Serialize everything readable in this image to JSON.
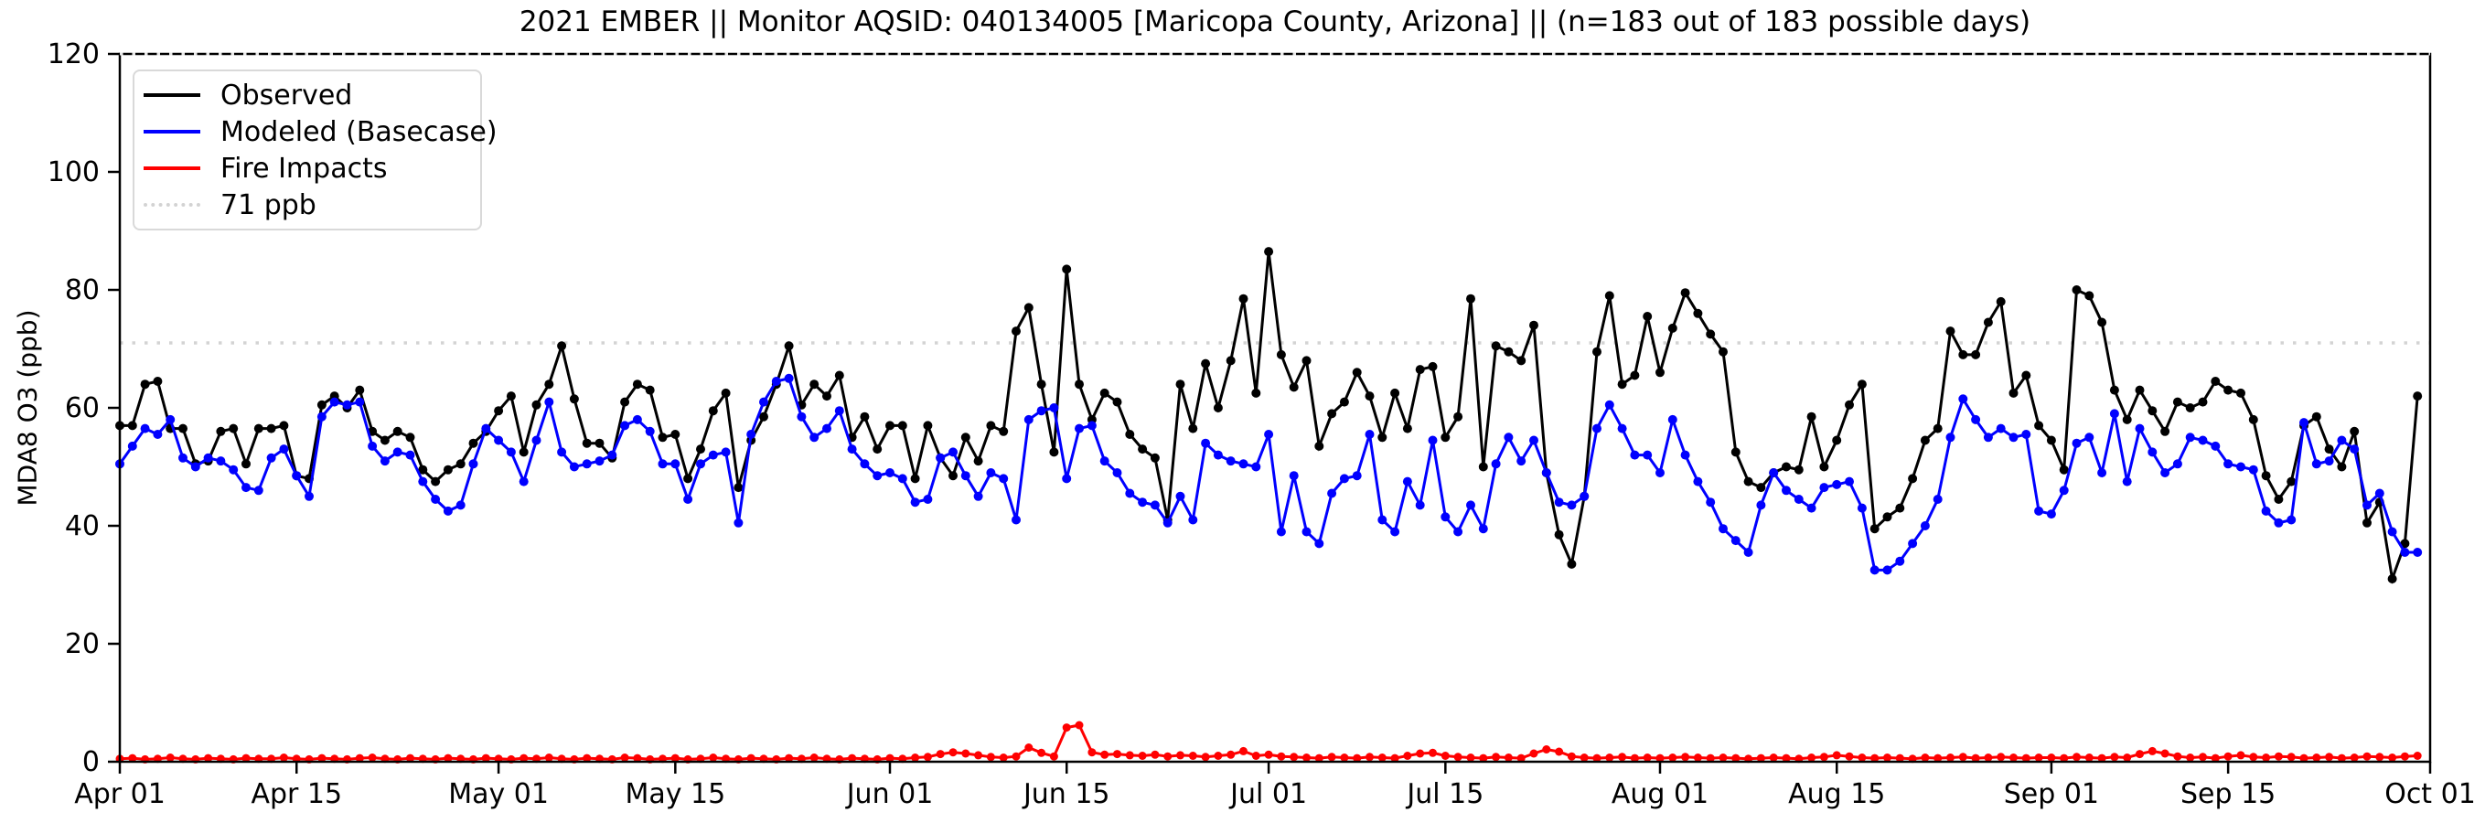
{
  "chart_data": {
    "type": "line",
    "title": "2021 EMBER || Monitor AQSID: 040134005 [Maricopa County, Arizona] || (n=183 out of 183 possible days)",
    "xlabel": "",
    "ylabel": "MDA8 O3 (ppb)",
    "ylim": [
      0,
      120
    ],
    "yticks": [
      0,
      20,
      40,
      60,
      80,
      100,
      120
    ],
    "x_days_total": 183,
    "x_start_label": "Apr 01",
    "x_end_label": "Oct 01",
    "grid": "off",
    "legend_position": "upper-left",
    "xticks": [
      {
        "label": "Apr 01",
        "day": 0
      },
      {
        "label": "Apr 15",
        "day": 14
      },
      {
        "label": "May 01",
        "day": 30
      },
      {
        "label": "May 15",
        "day": 44
      },
      {
        "label": "Jun 01",
        "day": 61
      },
      {
        "label": "Jun 15",
        "day": 75
      },
      {
        "label": "Jul 01",
        "day": 91
      },
      {
        "label": "Jul 15",
        "day": 105
      },
      {
        "label": "Aug 01",
        "day": 122
      },
      {
        "label": "Aug 15",
        "day": 136
      },
      {
        "label": "Sep 01",
        "day": 153
      },
      {
        "label": "Sep 15",
        "day": 167
      },
      {
        "label": "Oct 01",
        "day": 183
      }
    ],
    "threshold": {
      "label": "71 ppb",
      "value": 71,
      "color": "#d3d3d3"
    },
    "series": [
      {
        "name": "Observed",
        "color": "#000000",
        "values": [
          57,
          57,
          64,
          64.5,
          56.5,
          56.5,
          50.5,
          51,
          56,
          56.5,
          50.5,
          56.5,
          56.5,
          57,
          48.5,
          48,
          60.5,
          62,
          60,
          63,
          56,
          54.5,
          56,
          55,
          49.5,
          47.5,
          49.5,
          50.5,
          54,
          56,
          59.5,
          62,
          52.5,
          60.5,
          64,
          70.5,
          61.5,
          54,
          54,
          51.5,
          61,
          64,
          63,
          55,
          55.5,
          48,
          53,
          59.5,
          62.5,
          46.5,
          54.5,
          58.5,
          64,
          70.5,
          60.5,
          64,
          62,
          65.5,
          55,
          58.5,
          53,
          57,
          57,
          48,
          57,
          51.5,
          48.5,
          55,
          51,
          57,
          56,
          73,
          77,
          64,
          52.5,
          83.5,
          64,
          58,
          62.5,
          61,
          55.5,
          53,
          51.5,
          41,
          64,
          56.5,
          67.5,
          60,
          68,
          78.5,
          62.5,
          86.5,
          69,
          63.5,
          68,
          53.5,
          59,
          61,
          66,
          62,
          55,
          62.5,
          56.5,
          66.5,
          67,
          55,
          58.5,
          78.5,
          50,
          70.5,
          69.5,
          68,
          74,
          49,
          38.5,
          33.5,
          45,
          69.5,
          79,
          64,
          65.5,
          75.5,
          66,
          73.5,
          79.5,
          76,
          72.5,
          69.5,
          52.5,
          47.5,
          46.5,
          49,
          50,
          49.5,
          58.5,
          50,
          54.5,
          60.5,
          64,
          39.5,
          41.5,
          43,
          48,
          54.5,
          56.5,
          73,
          69,
          69,
          74.5,
          78,
          62.5,
          65.5,
          57,
          54.5,
          49.5,
          80,
          79,
          74.5,
          63,
          58,
          63,
          59.5,
          56,
          61,
          60,
          61,
          64.5,
          63,
          62.5,
          58,
          48.5,
          44.5,
          47.5,
          57,
          58.5,
          53,
          50,
          56,
          40.5,
          44,
          31,
          37,
          62
        ]
      },
      {
        "name": "Modeled (Basecase)",
        "color": "#0000ff",
        "values": [
          50.5,
          53.5,
          56.5,
          55.5,
          58,
          51.5,
          50,
          51.5,
          51,
          49.5,
          46.5,
          46,
          51.5,
          53,
          48.5,
          45,
          58.5,
          61,
          60.5,
          61,
          53.5,
          51,
          52.5,
          52,
          47.5,
          44.5,
          42.5,
          43.5,
          50.5,
          56.5,
          54.5,
          52.5,
          47.5,
          54.5,
          61,
          52.5,
          50,
          50.5,
          51,
          52,
          57,
          58,
          56,
          50.5,
          50.5,
          44.5,
          50.5,
          52,
          52.5,
          40.5,
          55.5,
          61,
          64.5,
          65,
          58.5,
          55,
          56.5,
          59.5,
          53,
          50.5,
          48.5,
          49,
          48,
          44,
          44.5,
          51.5,
          52.5,
          48.5,
          45,
          49,
          48,
          41,
          58,
          59.5,
          60,
          48,
          56.5,
          57,
          51,
          49,
          45.5,
          44,
          43.5,
          40.5,
          45,
          41,
          54,
          52,
          51,
          50.5,
          50,
          55.5,
          39,
          48.5,
          39,
          37,
          45.5,
          48,
          48.5,
          55.5,
          41,
          39,
          47.5,
          43.5,
          54.5,
          41.5,
          39,
          43.5,
          39.5,
          50.5,
          55,
          51,
          54.5,
          49,
          44,
          43.5,
          45,
          56.5,
          60.5,
          56.5,
          52,
          52,
          49,
          58,
          52,
          47.5,
          44,
          39.5,
          37.5,
          35.5,
          43.5,
          49,
          46,
          44.5,
          43,
          46.5,
          47,
          47.5,
          43,
          32.5,
          32.5,
          34,
          37,
          40,
          44.5,
          55,
          61.5,
          58,
          55,
          56.5,
          55,
          55.5,
          42.5,
          42,
          46,
          54,
          55,
          49,
          59,
          47.5,
          56.5,
          52.5,
          49,
          50.5,
          55,
          54.5,
          53.5,
          50.5,
          50,
          49.5,
          42.5,
          40.5,
          41,
          57.5,
          50.5,
          51,
          54.5,
          53,
          43.5,
          45.5,
          39,
          35.5,
          35.5
        ]
      },
      {
        "name": "Fire Impacts",
        "color": "#ff0000",
        "values": [
          0.5,
          0.6,
          0.4,
          0.5,
          0.7,
          0.5,
          0.4,
          0.6,
          0.5,
          0.4,
          0.6,
          0.5,
          0.5,
          0.7,
          0.5,
          0.4,
          0.6,
          0.5,
          0.4,
          0.6,
          0.7,
          0.5,
          0.4,
          0.6,
          0.5,
          0.4,
          0.6,
          0.5,
          0.4,
          0.6,
          0.5,
          0.4,
          0.6,
          0.5,
          0.7,
          0.5,
          0.4,
          0.6,
          0.5,
          0.4,
          0.7,
          0.6,
          0.4,
          0.5,
          0.6,
          0.4,
          0.5,
          0.7,
          0.5,
          0.4,
          0.6,
          0.5,
          0.4,
          0.6,
          0.5,
          0.7,
          0.5,
          0.4,
          0.6,
          0.5,
          0.4,
          0.6,
          0.5,
          0.7,
          0.8,
          1.3,
          1.6,
          1.4,
          1.1,
          0.8,
          0.7,
          0.9,
          2.4,
          1.5,
          0.9,
          5.8,
          6.2,
          1.6,
          1.2,
          1.3,
          1.1,
          1.0,
          1.2,
          0.9,
          1.1,
          1.0,
          0.8,
          1.0,
          1.2,
          1.8,
          1.0,
          1.2,
          0.9,
          0.8,
          0.7,
          0.6,
          0.8,
          0.7,
          0.6,
          0.8,
          0.7,
          0.6,
          1.0,
          1.4,
          1.5,
          1.0,
          0.8,
          0.7,
          0.6,
          0.8,
          0.7,
          0.6,
          1.4,
          2.1,
          1.7,
          0.9,
          0.7,
          0.6,
          0.7,
          0.8,
          0.6,
          0.7,
          0.6,
          0.7,
          0.8,
          0.7,
          0.6,
          0.7,
          0.6,
          0.5,
          0.6,
          0.7,
          0.6,
          0.5,
          0.7,
          0.8,
          1.1,
          0.9,
          0.7,
          0.6,
          0.7,
          0.6,
          0.5,
          0.7,
          0.6,
          0.7,
          0.8,
          0.6,
          0.7,
          0.8,
          0.7,
          0.6,
          0.7,
          0.7,
          0.6,
          0.8,
          0.7,
          0.6,
          0.8,
          0.7,
          1.3,
          1.8,
          1.4,
          0.9,
          0.7,
          0.8,
          0.6,
          0.9,
          1.1,
          0.8,
          0.7,
          0.9,
          0.8,
          0.6,
          0.7,
          0.8,
          0.6,
          0.7,
          0.9,
          0.8,
          0.7,
          0.9,
          1.0
        ]
      }
    ]
  }
}
